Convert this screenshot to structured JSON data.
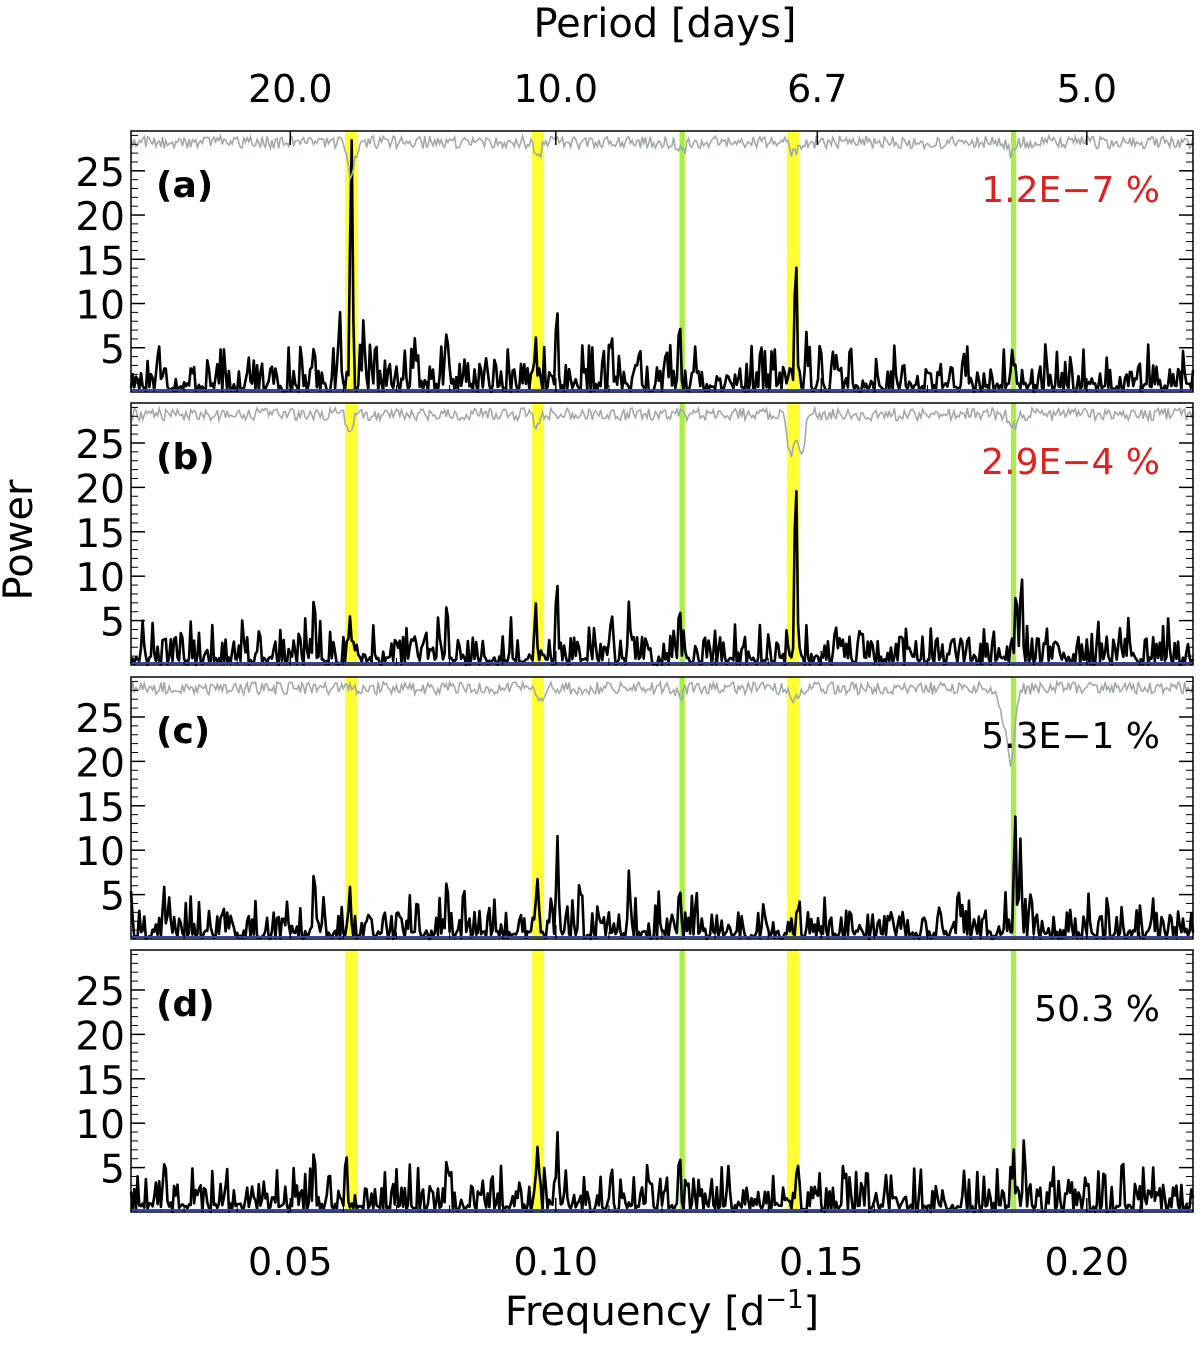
{
  "chart_data": {
    "type": "line",
    "top_axis": {
      "label": "Period [days]",
      "ticks": [
        {
          "label": "20.0",
          "period": 20.0
        },
        {
          "label": "10.0",
          "period": 10.0
        },
        {
          "label": "6.7",
          "period": 6.7
        },
        {
          "label": "5.0",
          "period": 5.0
        }
      ]
    },
    "xlabel": "Frequency [d",
    "xlabel_superscript": "−1",
    "xlabel_close": "]",
    "ylabel": "Power",
    "xlim": [
      0.02,
      0.22
    ],
    "ylim": [
      0,
      29.5
    ],
    "x_ticks": [
      {
        "label": "0.05",
        "value": 0.05
      },
      {
        "label": "0.10",
        "value": 0.1
      },
      {
        "label": "0.15",
        "value": 0.15
      },
      {
        "label": "0.20",
        "value": 0.2
      }
    ],
    "y_ticks": [
      {
        "label": "5",
        "value": 5
      },
      {
        "label": "10",
        "value": 10
      },
      {
        "label": "15",
        "value": 15
      },
      {
        "label": "20",
        "value": 20
      },
      {
        "label": "25",
        "value": 25
      }
    ],
    "bands": [
      {
        "from": 0.0603,
        "to": 0.0627,
        "color": "#ffff33"
      },
      {
        "from": 0.0955,
        "to": 0.0978,
        "color": "#ffff33"
      },
      {
        "from": 0.1233,
        "to": 0.1243,
        "color": "#aaee44"
      },
      {
        "from": 0.1435,
        "to": 0.1458,
        "color": "#ffff33"
      },
      {
        "from": 0.1857,
        "to": 0.1867,
        "color": "#aaee44"
      }
    ],
    "colors": {
      "periodogram": "#000000",
      "window": "#a0aaa8",
      "baseline": "#3344aa",
      "significant": "#dd2222",
      "normal": "#000000"
    },
    "panels": [
      {
        "label": "(a)",
        "fap": "1.2E−7 %",
        "fap_color": "#dd2222",
        "has_window": true,
        "peaks": [
          [
            0.0615,
            29.5
          ],
          [
            0.0593,
            9.5
          ],
          [
            0.0638,
            8.3
          ],
          [
            0.1452,
            15.8
          ],
          [
            0.1002,
            10.0
          ],
          [
            0.0795,
            7.5
          ],
          [
            0.1233,
            8.5
          ],
          [
            0.0962,
            6.3
          ],
          [
            0.1859,
            4.8
          ],
          [
            0.0735,
            6.3
          ],
          [
            0.1472,
            6.8
          ],
          [
            0.1158,
            5.5
          ],
          [
            0.1208,
            5.3
          ],
          [
            0.1105,
            7.0
          ],
          [
            0.0545,
            5.6
          ],
          [
            0.0252,
            5.8
          ]
        ],
        "window_dips": [
          [
            0.0615,
            4.0
          ],
          [
            0.1447,
            1.3
          ],
          [
            0.0966,
            1.5
          ],
          [
            0.1858,
            1.2
          ],
          [
            0.124,
            0.8
          ]
        ]
      },
      {
        "label": "(b)",
        "fap": "2.9E−4 %",
        "fap_color": "#dd2222",
        "has_window": true,
        "peaks": [
          [
            0.1452,
            22.0
          ],
          [
            0.1877,
            10.8
          ],
          [
            0.1867,
            9.0
          ],
          [
            0.1002,
            10.0
          ],
          [
            0.0545,
            8.2
          ],
          [
            0.0795,
            7.5
          ],
          [
            0.1233,
            7.0
          ],
          [
            0.1138,
            7.3
          ],
          [
            0.0962,
            7.1
          ],
          [
            0.0612,
            5.6
          ],
          [
            0.1105,
            6.3
          ],
          [
            0.1525,
            3.5
          ],
          [
            0.0755,
            4.2
          ],
          [
            0.0222,
            5.0
          ]
        ],
        "window_dips": [
          [
            0.1443,
            5.0
          ],
          [
            0.1463,
            4.0
          ],
          [
            0.0612,
            1.3
          ],
          [
            0.0966,
            1.2
          ],
          [
            0.1862,
            1.3
          ]
        ]
      },
      {
        "label": "(c)",
        "fap": "5.3E−1 %",
        "fap_color": "#000000",
        "has_window": true,
        "peaks": [
          [
            0.1865,
            14.3
          ],
          [
            0.1875,
            11.3
          ],
          [
            0.1003,
            11.6
          ],
          [
            0.0545,
            8.2
          ],
          [
            0.0795,
            7.2
          ],
          [
            0.0965,
            7.0
          ],
          [
            0.1138,
            7.9
          ],
          [
            0.0612,
            6.0
          ],
          [
            0.1233,
            6.2
          ],
          [
            0.1758,
            6.2
          ],
          [
            0.0262,
            6.0
          ],
          [
            0.1045,
            7.0
          ],
          [
            0.1895,
            5.8
          ]
        ],
        "window_dips": [
          [
            0.1858,
            8.5
          ],
          [
            0.1843,
            4.0
          ],
          [
            0.0968,
            1.4
          ],
          [
            0.1448,
            1.0
          ],
          [
            0.1235,
            0.8
          ]
        ]
      },
      {
        "label": "(d)",
        "fap": "50.3 %",
        "fap_color": "#000000",
        "has_window": false,
        "peaks": [
          [
            0.0965,
            7.6
          ],
          [
            0.1003,
            9.0
          ],
          [
            0.0545,
            7.5
          ],
          [
            0.0605,
            7.1
          ],
          [
            0.1882,
            8.5
          ],
          [
            0.1862,
            7.2
          ],
          [
            0.1233,
            7.0
          ],
          [
            0.0262,
            5.5
          ],
          [
            0.0795,
            6.5
          ],
          [
            0.1455,
            6.0
          ],
          [
            0.1105,
            5.5
          ],
          [
            0.1998,
            4.3
          ]
        ],
        "window_dips": []
      }
    ]
  }
}
